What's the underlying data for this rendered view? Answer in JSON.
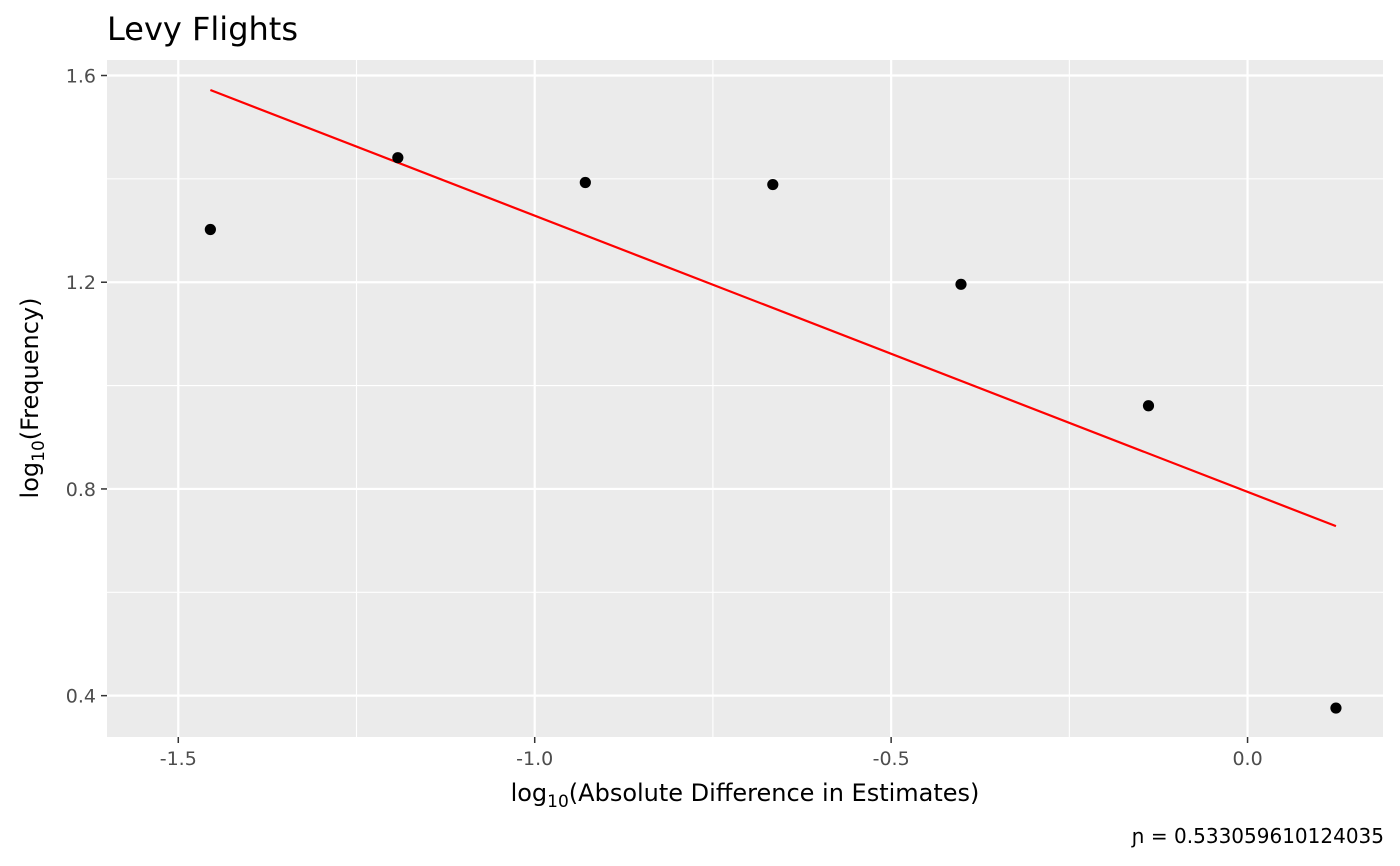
{
  "chart_data": {
    "type": "scatter",
    "title": "Levy Flights",
    "xlabel": {
      "base": "log",
      "sub": "10",
      "rest": "(Absolute Difference in Estimates)"
    },
    "ylabel": {
      "base": "log",
      "sub": "10",
      "rest": "(Frequency)"
    },
    "caption": {
      "symbol": "ɲ",
      "text": " = 0.533059610124035"
    },
    "xlim": [
      -1.6,
      0.19
    ],
    "ylim": [
      0.32,
      1.63
    ],
    "x_ticks": [
      -1.5,
      -1.0,
      -0.5,
      0.0
    ],
    "x_tick_labels": [
      "-1.5",
      "-1.0",
      "-0.5",
      "0.0"
    ],
    "x_minor": [
      -1.25,
      -0.75,
      -0.25
    ],
    "y_ticks": [
      0.4,
      0.8,
      1.2,
      1.6
    ],
    "y_tick_labels": [
      "0.4",
      "0.8",
      "1.2",
      "1.6"
    ],
    "y_minor": [
      0.6,
      1.0,
      1.4
    ],
    "grid": true,
    "legend": "none",
    "colors": {
      "panel": "#EBEBEB",
      "grid": "#FFFFFF",
      "points": "#000000",
      "fit_line": "#FF0000"
    },
    "points": [
      {
        "x": -1.455,
        "y": 1.302
      },
      {
        "x": -1.192,
        "y": 1.441
      },
      {
        "x": -0.929,
        "y": 1.393
      },
      {
        "x": -0.666,
        "y": 1.389
      },
      {
        "x": -0.402,
        "y": 1.196
      },
      {
        "x": -0.139,
        "y": 0.961
      },
      {
        "x": 0.124,
        "y": 0.376
      }
    ],
    "fit_line": {
      "x": [
        -1.455,
        0.124
      ],
      "y": [
        1.572,
        0.728
      ]
    }
  }
}
